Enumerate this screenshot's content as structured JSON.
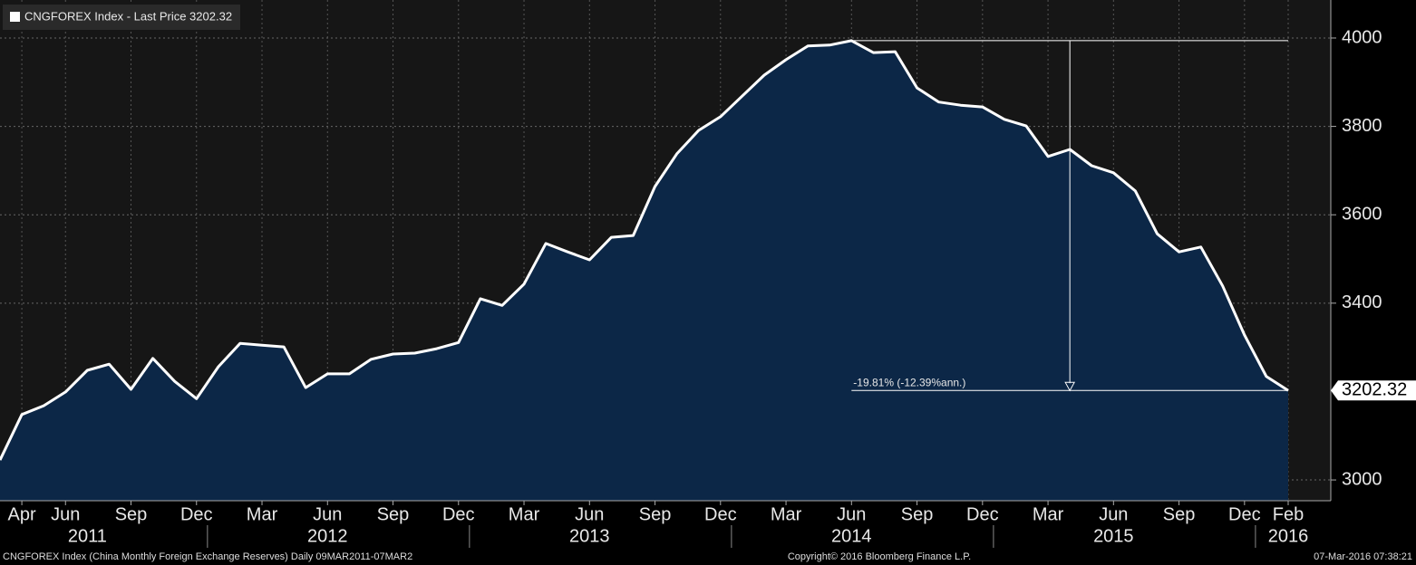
{
  "chart_data": {
    "type": "area",
    "legend": "CNGFOREX Index - Last Price 3202.32",
    "color": "#ffffff",
    "fill": "#0c2747",
    "x": [
      "2011-03",
      "2011-04",
      "2011-05",
      "2011-06",
      "2011-07",
      "2011-08",
      "2011-09",
      "2011-10",
      "2011-11",
      "2011-12",
      "2012-01",
      "2012-02",
      "2012-03",
      "2012-04",
      "2012-05",
      "2012-06",
      "2012-07",
      "2012-08",
      "2012-09",
      "2012-10",
      "2012-11",
      "2012-12",
      "2013-01",
      "2013-02",
      "2013-03",
      "2013-04",
      "2013-05",
      "2013-06",
      "2013-07",
      "2013-08",
      "2013-09",
      "2013-10",
      "2013-11",
      "2013-12",
      "2014-01",
      "2014-02",
      "2014-03",
      "2014-04",
      "2014-05",
      "2014-06",
      "2014-07",
      "2014-08",
      "2014-09",
      "2014-10",
      "2014-11",
      "2014-12",
      "2015-01",
      "2015-02",
      "2015-03",
      "2015-04",
      "2015-05",
      "2015-06",
      "2015-07",
      "2015-08",
      "2015-09",
      "2015-10",
      "2015-11",
      "2015-12",
      "2016-01",
      "2016-02"
    ],
    "values": [
      3045,
      3148,
      3168,
      3199,
      3248,
      3262,
      3205,
      3275,
      3223,
      3184,
      3256,
      3309,
      3305,
      3301,
      3209,
      3240,
      3240,
      3273,
      3285,
      3287,
      3297,
      3311,
      3410,
      3395,
      3443,
      3535,
      3516,
      3498,
      3549,
      3553,
      3664,
      3738,
      3791,
      3822,
      3869,
      3916,
      3951,
      3982,
      3984,
      3994,
      3967,
      3969,
      3887,
      3855,
      3848,
      3844,
      3816,
      3801,
      3732,
      3748,
      3711,
      3695,
      3654,
      3557,
      3516,
      3527,
      3439,
      3328,
      3234,
      3202.32
    ],
    "xlim": [
      "2011-03",
      "2016-02"
    ],
    "ylim": [
      2953,
      4086
    ],
    "yticks": [
      3000,
      3400,
      3600,
      3800,
      4000
    ],
    "grid": true,
    "xticks": [
      {
        "value": "2011-04",
        "label": "Apr"
      },
      {
        "value": "2011-06",
        "label": "Jun"
      },
      {
        "value": "2011-09",
        "label": "Sep"
      },
      {
        "value": "2011-12",
        "label": "Dec"
      },
      {
        "value": "2012-03",
        "label": "Mar"
      },
      {
        "value": "2012-06",
        "label": "Jun"
      },
      {
        "value": "2012-09",
        "label": "Sep"
      },
      {
        "value": "2012-12",
        "label": "Dec"
      },
      {
        "value": "2013-03",
        "label": "Mar"
      },
      {
        "value": "2013-06",
        "label": "Jun"
      },
      {
        "value": "2013-09",
        "label": "Sep"
      },
      {
        "value": "2013-12",
        "label": "Dec"
      },
      {
        "value": "2014-03",
        "label": "Mar"
      },
      {
        "value": "2014-06",
        "label": "Jun"
      },
      {
        "value": "2014-09",
        "label": "Sep"
      },
      {
        "value": "2014-12",
        "label": "Dec"
      },
      {
        "value": "2015-03",
        "label": "Mar"
      },
      {
        "value": "2015-06",
        "label": "Jun"
      },
      {
        "value": "2015-09",
        "label": "Sep"
      },
      {
        "value": "2015-12",
        "label": "Dec"
      },
      {
        "value": "2016-02",
        "label": "Feb"
      }
    ],
    "year_labels": [
      {
        "value": "2011-07",
        "label": "2011"
      },
      {
        "value": "2012-06",
        "label": "2012"
      },
      {
        "value": "2013-06",
        "label": "2013"
      },
      {
        "value": "2014-06",
        "label": "2014"
      },
      {
        "value": "2015-06",
        "label": "2015"
      },
      {
        "value": "2016-02",
        "label": "2016"
      }
    ],
    "measure": {
      "from": "2014-06",
      "to": "2016-02",
      "arrow_x": "2015-04",
      "label": "-19.81% (-12.39%ann.)"
    },
    "footer_left": "CNGFOREX Index (China Monthly Foreign Exchange Reserves)  Daily 09MAR2011-07MAR2",
    "footer_center": "Copyright© 2016 Bloomberg Finance L.P.",
    "footer_right": "07-Mar-2016 07:38:21"
  }
}
